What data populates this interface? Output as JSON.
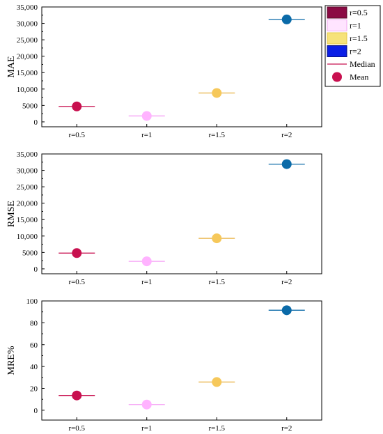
{
  "legend": {
    "entries": [
      {
        "label": "r=0.5",
        "kind": "box",
        "fill": "#8b0a44",
        "stroke": "#5a0a2a"
      },
      {
        "label": "r=1",
        "kind": "box",
        "fill": "#ffe4ff",
        "stroke": "#f0a8f0"
      },
      {
        "label": "r=1.5",
        "kind": "box",
        "fill": "#f6e27a",
        "stroke": "#e6c84a"
      },
      {
        "label": "r=2",
        "kind": "box",
        "fill": "#0a1ee6",
        "stroke": "#0a1080"
      },
      {
        "label": "Median",
        "kind": "line",
        "color": "#c8104f"
      },
      {
        "label": "Mean",
        "kind": "dot",
        "color": "#c8104f"
      }
    ]
  },
  "chart_data": [
    {
      "type": "scatter",
      "ylabel": "MAE",
      "xlabel": "",
      "categories": [
        "r=0.5",
        "r=1",
        "r=1.5",
        "r=2"
      ],
      "ylim": [
        -1500,
        35000
      ],
      "yticks": [
        0,
        5000,
        10000,
        15000,
        20000,
        25000,
        30000,
        35000
      ],
      "ytick_labels": [
        "0",
        "5000",
        "10,000",
        "15,000",
        "20,000",
        "25,000",
        "30,000",
        "35,000"
      ],
      "series": [
        {
          "mean": 4700,
          "median": 4700,
          "color": "#c8104f",
          "median_color": "#c8104f"
        },
        {
          "mean": 1800,
          "median": 1800,
          "color": "#ffb3ff",
          "median_color": "#f5a0f5"
        },
        {
          "mean": 8800,
          "median": 8800,
          "color": "#f6c85a",
          "median_color": "#e8b040"
        },
        {
          "mean": 31200,
          "median": 31200,
          "color": "#0a6aa8",
          "median_color": "#0a6aa8"
        }
      ]
    },
    {
      "type": "scatter",
      "ylabel": "RMSE",
      "xlabel": "",
      "categories": [
        "r=0.5",
        "r=1",
        "r=1.5",
        "r=2"
      ],
      "ylim": [
        -1500,
        35000
      ],
      "yticks": [
        0,
        5000,
        10000,
        15000,
        20000,
        25000,
        30000,
        35000
      ],
      "ytick_labels": [
        "0",
        "5000",
        "10,000",
        "15,000",
        "20,000",
        "25,000",
        "30,000",
        "35,000"
      ],
      "series": [
        {
          "mean": 4800,
          "median": 4800,
          "color": "#c8104f",
          "median_color": "#c8104f"
        },
        {
          "mean": 2300,
          "median": 2300,
          "color": "#ffb3ff",
          "median_color": "#f5a0f5"
        },
        {
          "mean": 9300,
          "median": 9300,
          "color": "#f6c85a",
          "median_color": "#e8b040"
        },
        {
          "mean": 31900,
          "median": 31900,
          "color": "#0a6aa8",
          "median_color": "#0a6aa8"
        }
      ]
    },
    {
      "type": "scatter",
      "ylabel": "MRE%",
      "xlabel": "",
      "categories": [
        "r=0.5",
        "r=1",
        "r=1.5",
        "r=2"
      ],
      "ylim": [
        -9,
        100
      ],
      "yticks": [
        0,
        20,
        40,
        60,
        80,
        100
      ],
      "ytick_labels": [
        "0",
        "20",
        "40",
        "60",
        "80",
        "100"
      ],
      "series": [
        {
          "mean": 13.5,
          "median": 13.5,
          "color": "#c8104f",
          "median_color": "#c8104f"
        },
        {
          "mean": 5.2,
          "median": 5.2,
          "color": "#ffb3ff",
          "median_color": "#f5a0f5"
        },
        {
          "mean": 25.8,
          "median": 25.8,
          "color": "#f6c85a",
          "median_color": "#e8b040"
        },
        {
          "mean": 91.5,
          "median": 91.5,
          "color": "#0a6aa8",
          "median_color": "#0a6aa8"
        }
      ]
    }
  ]
}
